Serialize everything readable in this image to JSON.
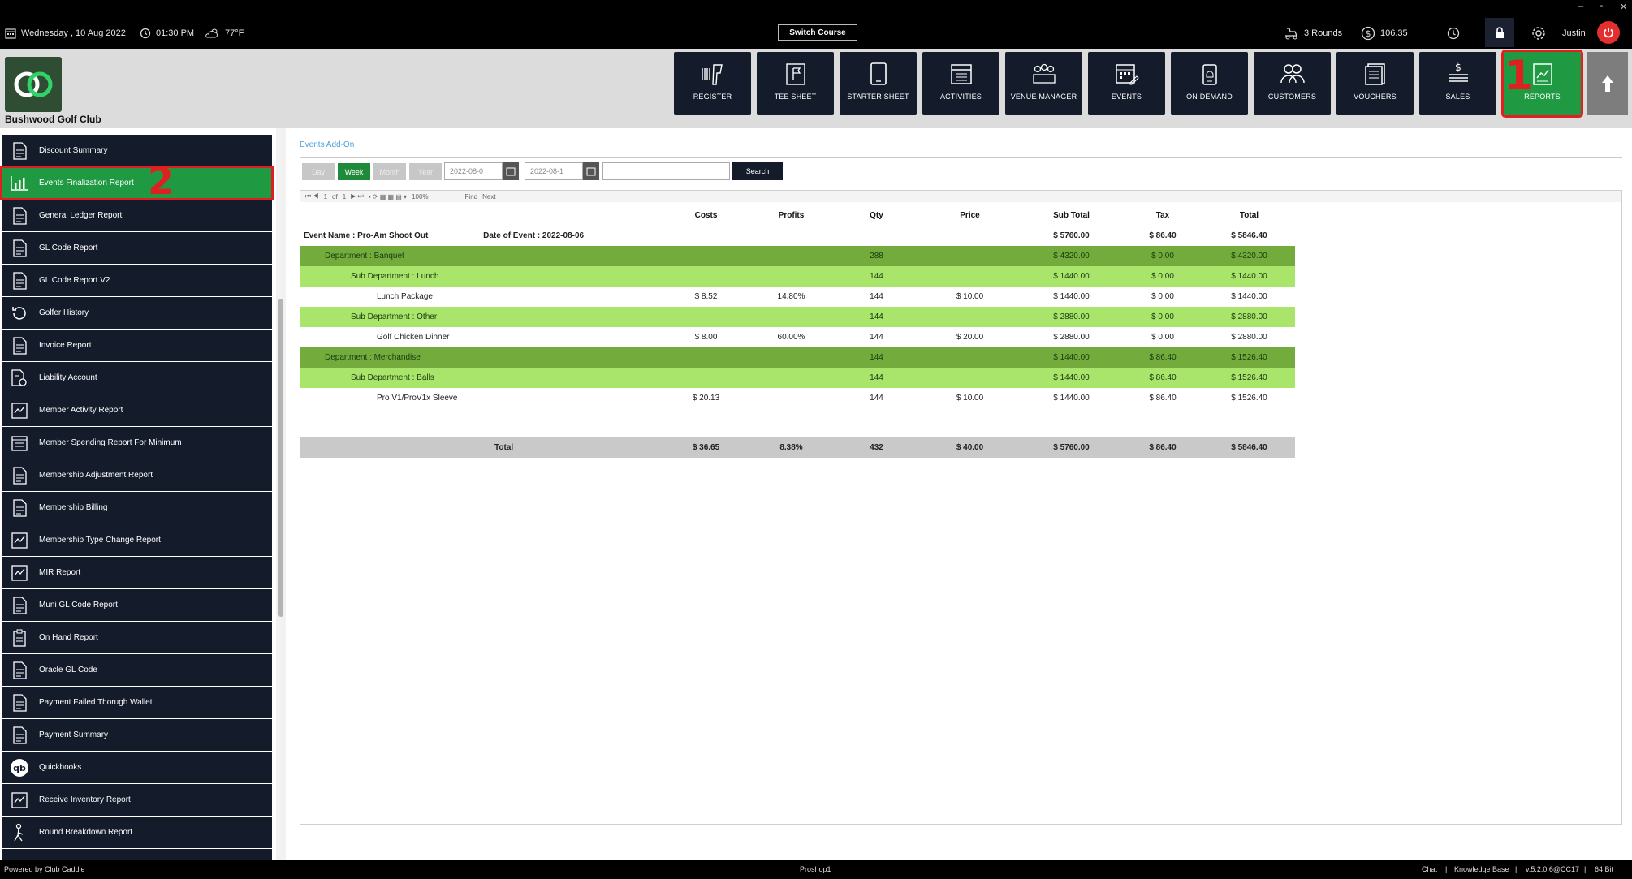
{
  "topbar": {
    "date": "Wednesday , 10 Aug 2022",
    "time": "01:30 PM",
    "weather": "77°F",
    "switch_course": "Switch Course",
    "rounds": "3 Rounds",
    "balance": "106.35",
    "user": "Justin",
    "window_controls": [
      "–",
      "▫",
      "✕"
    ]
  },
  "header": {
    "club_name": "Bushwood Golf Club",
    "nav": [
      {
        "label": "REGISTER",
        "icon": "barcode-scanner-icon"
      },
      {
        "label": "TEE SHEET",
        "icon": "flag-sheet-icon"
      },
      {
        "label": "STARTER SHEET",
        "icon": "tablet-icon"
      },
      {
        "label": "ACTIVITIES",
        "icon": "calendar-list-icon"
      },
      {
        "label": "VENUE MANAGER",
        "icon": "people-group-icon"
      },
      {
        "label": "EVENTS",
        "icon": "calendar-edit-icon"
      },
      {
        "label": "ON DEMAND",
        "icon": "phone-bell-icon"
      },
      {
        "label": "CUSTOMERS",
        "icon": "customers-icon"
      },
      {
        "label": "VOUCHERS",
        "icon": "voucher-icon"
      },
      {
        "label": "SALES",
        "icon": "sales-money-icon"
      },
      {
        "label": "REPORTS",
        "icon": "report-chart-icon"
      }
    ],
    "annotation_1": "1",
    "accent": "#1f9a42",
    "nav_bg": "#141b2b",
    "highlight": "#e02020"
  },
  "sidebar": {
    "annotation_2": "2",
    "items": [
      {
        "label": "Discount Summary",
        "icon": "document-icon"
      },
      {
        "label": "Events Finalization Report",
        "icon": "bar-chart-icon",
        "active": true
      },
      {
        "label": "General Ledger Report",
        "icon": "document-icon"
      },
      {
        "label": "GL Code Report",
        "icon": "document-icon"
      },
      {
        "label": "GL Code Report V2",
        "icon": "document-icon"
      },
      {
        "label": "Golfer History",
        "icon": "history-icon"
      },
      {
        "label": "Invoice Report",
        "icon": "document-icon"
      },
      {
        "label": "Liability Account",
        "icon": "liability-icon"
      },
      {
        "label": "Member Activity Report",
        "icon": "activity-icon"
      },
      {
        "label": "Member Spending Report For Minimum",
        "icon": "calendar-list-icon"
      },
      {
        "label": "Membership Adjustment Report",
        "icon": "document-icon"
      },
      {
        "label": "Membership Billing",
        "icon": "document-icon"
      },
      {
        "label": "Membership Type Change Report",
        "icon": "activity-icon"
      },
      {
        "label": "MIR Report",
        "icon": "activity-icon"
      },
      {
        "label": "Muni GL Code Report",
        "icon": "document-icon"
      },
      {
        "label": "On Hand Report",
        "icon": "clipboard-icon"
      },
      {
        "label": "Oracle GL Code",
        "icon": "document-icon"
      },
      {
        "label": "Payment Failed Thorugh Wallet",
        "icon": "document-icon"
      },
      {
        "label": "Payment Summary",
        "icon": "document-icon"
      },
      {
        "label": "Quickbooks",
        "icon": "quickbooks-icon"
      },
      {
        "label": "Receive Inventory Report",
        "icon": "activity-icon"
      },
      {
        "label": "Round Breakdown Report",
        "icon": "golfer-icon"
      }
    ]
  },
  "main": {
    "title": "Events Add-On",
    "period_buttons": [
      "Day",
      "Week",
      "Month",
      "Year"
    ],
    "date_from": "2022-08-0",
    "date_to": "2022-08-1",
    "search_label": "Search",
    "pager": {
      "page": "1",
      "of_label": "of",
      "pages": "1",
      "zoom": "100%",
      "find": "Find",
      "next": "Next"
    }
  },
  "report": {
    "columns": [
      "",
      "Costs",
      "Profits",
      "Qty",
      "Price",
      "Sub Total",
      "Tax",
      "Total"
    ],
    "event_name": "Event Name : Pro-Am Shoot Out",
    "event_date": "Date of Event : 2022-08-06",
    "event_subtotal": "$ 5760.00",
    "event_tax": "$ 86.40",
    "event_total": "$ 5846.40",
    "rows": [
      {
        "type": "dept",
        "name": "Department : Banquet",
        "costs": "",
        "profits": "",
        "qty": "288",
        "price": "",
        "sub": "$ 4320.00",
        "tax": "$ 0.00",
        "total": "$ 4320.00"
      },
      {
        "type": "subdept",
        "name": "Sub Department : Lunch",
        "costs": "",
        "profits": "",
        "qty": "144",
        "price": "",
        "sub": "$ 1440.00",
        "tax": "$ 0.00",
        "total": "$ 1440.00"
      },
      {
        "type": "item",
        "name": "Lunch Package",
        "costs": "$ 8.52",
        "profits": "14.80%",
        "qty": "144",
        "price": "$ 10.00",
        "sub": "$ 1440.00",
        "tax": "$ 0.00",
        "total": "$ 1440.00"
      },
      {
        "type": "subdept",
        "name": "Sub Department : Other",
        "costs": "",
        "profits": "",
        "qty": "144",
        "price": "",
        "sub": "$ 2880.00",
        "tax": "$ 0.00",
        "total": "$ 2880.00"
      },
      {
        "type": "item",
        "name": "Golf Chicken Dinner",
        "costs": "$ 8.00",
        "profits": "60.00%",
        "qty": "144",
        "price": "$ 20.00",
        "sub": "$ 2880.00",
        "tax": "$ 0.00",
        "total": "$ 2880.00"
      },
      {
        "type": "dept",
        "name": "Department : Merchandise",
        "costs": "",
        "profits": "",
        "qty": "144",
        "price": "",
        "sub": "$ 1440.00",
        "tax": "$ 86.40",
        "total": "$ 1526.40"
      },
      {
        "type": "subdept",
        "name": "Sub Department : Balls",
        "costs": "",
        "profits": "",
        "qty": "144",
        "price": "",
        "sub": "$ 1440.00",
        "tax": "$ 86.40",
        "total": "$ 1526.40"
      },
      {
        "type": "item",
        "name": "Pro V1/ProV1x Sleeve",
        "costs": "$ 20.13",
        "profits": "",
        "qty": "144",
        "price": "$ 10.00",
        "sub": "$ 1440.00",
        "tax": "$ 86.40",
        "total": "$ 1526.40"
      }
    ],
    "total": {
      "name": "Total",
      "costs": "$ 36.65",
      "profits": "8.38%",
      "qty": "432",
      "price": "$ 40.00",
      "sub": "$ 5760.00",
      "tax": "$ 86.40",
      "total": "$ 5846.40"
    },
    "colors": {
      "dept": "#73ac3c",
      "subdept": "#a9e56b",
      "total": "#c9c9c9"
    }
  },
  "footer": {
    "powered": "Powered by Club Caddie",
    "station": "Proshop1",
    "chat": "Chat",
    "sep": "|",
    "kb": "Knowledge Base",
    "version": "v.5.2.0.6@CC17",
    "bits": "64 Bit"
  }
}
